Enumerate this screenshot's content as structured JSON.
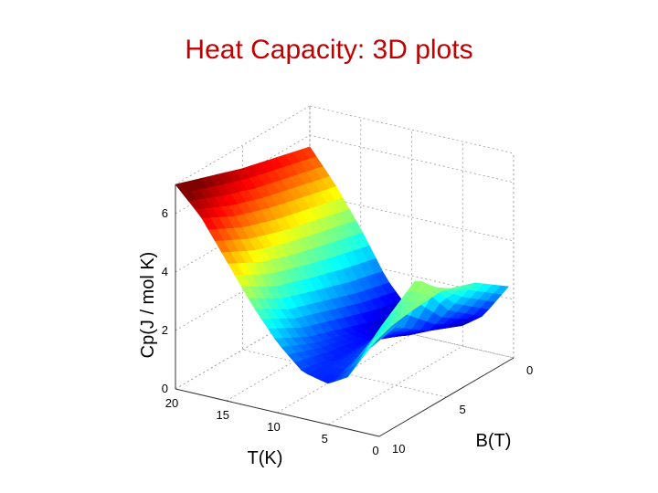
{
  "slide": {
    "title": "Heat Capacity: 3D plots"
  },
  "chart_data": {
    "type": "surface",
    "title": "",
    "xlabel": "T(K)",
    "ylabel": "B(T)",
    "zlabel": "Cp(J / mol K)",
    "xlim": [
      0,
      20
    ],
    "ylim": [
      0,
      10
    ],
    "zlim": [
      0,
      7
    ],
    "x_ticks": [
      "0",
      "5",
      "10",
      "15",
      "20"
    ],
    "y_ticks": [
      "0",
      "5",
      "10"
    ],
    "z_ticks": [
      "0",
      "2",
      "4",
      "6"
    ],
    "grid": true,
    "colormap": "jet",
    "T": [
      0.5,
      3,
      5,
      7.5,
      10,
      12.5,
      15,
      17.5,
      20
    ],
    "B": [
      0,
      2.5,
      5,
      7.5,
      10
    ],
    "Cp": [
      [
        2.4,
        3.2,
        3.6,
        3.5,
        3.3
      ],
      [
        1.2,
        2.1,
        3.8,
        2.9,
        1.8
      ],
      [
        0.7,
        1.2,
        2.0,
        1.7,
        1.4
      ],
      [
        0.5,
        0.8,
        1.3,
        1.4,
        1.6
      ],
      [
        0.7,
        1.0,
        1.4,
        1.8,
        2.4
      ],
      [
        1.7,
        2.0,
        2.4,
        2.8,
        3.5
      ],
      [
        3.2,
        3.5,
        3.8,
        4.2,
        4.8
      ],
      [
        4.5,
        4.8,
        5.1,
        5.5,
        6.1
      ],
      [
        5.6,
        5.9,
        6.2,
        6.6,
        7.0
      ]
    ]
  }
}
